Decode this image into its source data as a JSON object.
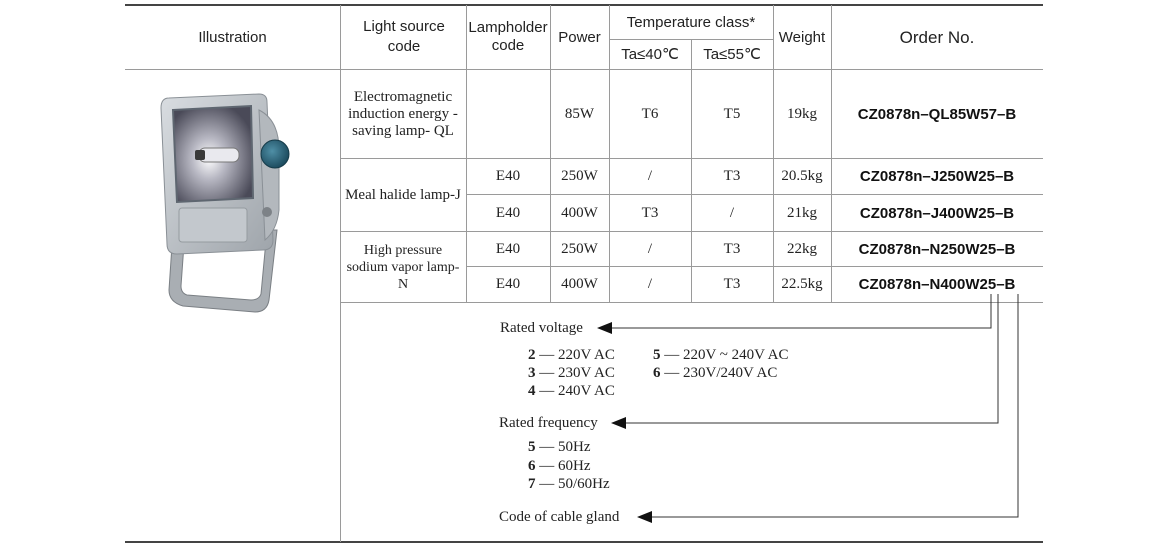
{
  "header": {
    "illustration": "Illustration",
    "light_source": "Light source code",
    "lampholder": "Lampholder code",
    "power": "Power",
    "temperature_class": "Temperature class*",
    "ta40": "Ta≤40℃",
    "ta55": "Ta≤55℃",
    "weight": "Weight",
    "order_no": "Order No."
  },
  "groups": [
    {
      "name": "Electromagnetic induction energy -saving lamp- QL"
    },
    {
      "name": "Meal halide lamp-J"
    },
    {
      "name": "High pressure sodium vapor lamp-N"
    }
  ],
  "rows": [
    {
      "lampholder": "",
      "power": "85W",
      "t40": "T6",
      "t55": "T5",
      "weight": "19kg",
      "order": "CZ0878n–QL85W57–B"
    },
    {
      "lampholder": "E40",
      "power": "250W",
      "t40": "/",
      "t55": "T3",
      "weight": "20.5kg",
      "order": "CZ0878n–J250W25–B"
    },
    {
      "lampholder": "E40",
      "power": "400W",
      "t40": "T3",
      "t55": "/",
      "weight": "21kg",
      "order": "CZ0878n–J400W25–B"
    },
    {
      "lampholder": "E40",
      "power": "250W",
      "t40": "/",
      "t55": "T3",
      "weight": "22kg",
      "order": "CZ0878n–N250W25–B"
    },
    {
      "lampholder": "E40",
      "power": "400W",
      "t40": "/",
      "t55": "T3",
      "weight": "22.5kg",
      "order": "CZ0878n–N400W25–B"
    }
  ],
  "legend": {
    "voltage": {
      "title": "Rated voltage",
      "items": [
        {
          "code": "2",
          "text": "— 220V  AC"
        },
        {
          "code": "3",
          "text": "— 230V  AC"
        },
        {
          "code": "4",
          "text": "— 240V  AC"
        },
        {
          "code": "5",
          "text": "— 220V ~ 240V  AC"
        },
        {
          "code": "6",
          "text": "— 230V/240V  AC"
        }
      ]
    },
    "frequency": {
      "title": "Rated frequency",
      "items": [
        {
          "code": "5",
          "text": "— 50Hz"
        },
        {
          "code": "6",
          "text": "— 60Hz"
        },
        {
          "code": "7",
          "text": "— 50/60Hz"
        }
      ]
    },
    "cable": {
      "title": "Code of cable gland"
    }
  }
}
